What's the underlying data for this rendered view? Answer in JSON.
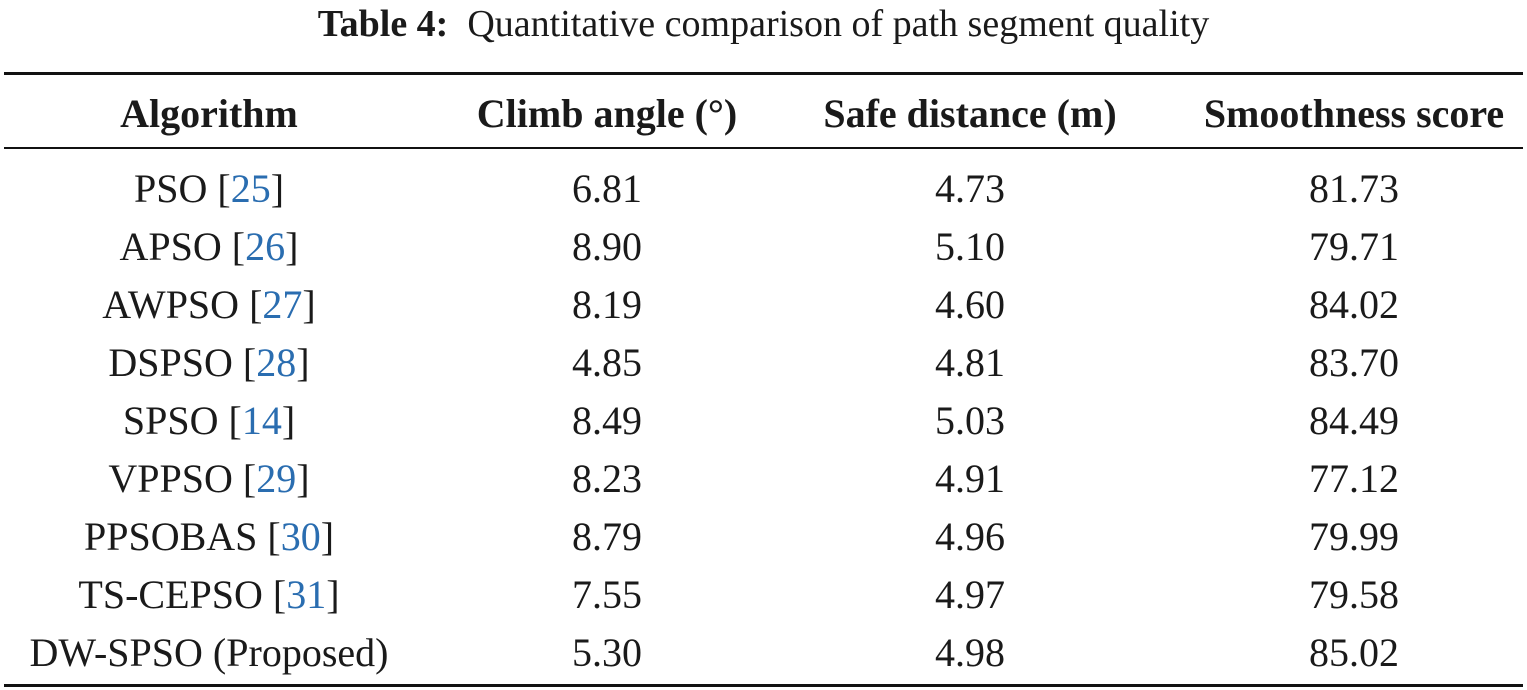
{
  "caption": {
    "label": "Table 4:",
    "text": "Quantitative comparison of path segment quality"
  },
  "table": {
    "headers": [
      "Algorithm",
      "Climb angle (°)",
      "Safe distance (m)",
      "Smoothness score"
    ],
    "rows": [
      {
        "algorithm": "PSO",
        "ref": "25",
        "climb": "6.81",
        "safe": "4.73",
        "smooth": "81.73"
      },
      {
        "algorithm": "APSO",
        "ref": "26",
        "climb": "8.90",
        "safe": "5.10",
        "smooth": "79.71"
      },
      {
        "algorithm": "AWPSO",
        "ref": "27",
        "climb": "8.19",
        "safe": "4.60",
        "smooth": "84.02"
      },
      {
        "algorithm": "DSPSO",
        "ref": "28",
        "climb": "4.85",
        "safe": "4.81",
        "smooth": "83.70"
      },
      {
        "algorithm": "SPSO",
        "ref": "14",
        "climb": "8.49",
        "safe": "5.03",
        "smooth": "84.49"
      },
      {
        "algorithm": "VPPSO",
        "ref": "29",
        "climb": "8.23",
        "safe": "4.91",
        "smooth": "77.12"
      },
      {
        "algorithm": "PPSOBAS",
        "ref": "30",
        "climb": "8.79",
        "safe": "4.96",
        "smooth": "79.99"
      },
      {
        "algorithm": "TS-CEPSO",
        "ref": "31",
        "climb": "7.55",
        "safe": "4.97",
        "smooth": "79.58"
      },
      {
        "algorithm": "DW-SPSO (Proposed)",
        "ref": "",
        "climb": "5.30",
        "safe": "4.98",
        "smooth": "85.02"
      }
    ]
  },
  "colors": {
    "citation": "#2a6db0",
    "text": "#1a1a1a",
    "rule": "#111111"
  }
}
